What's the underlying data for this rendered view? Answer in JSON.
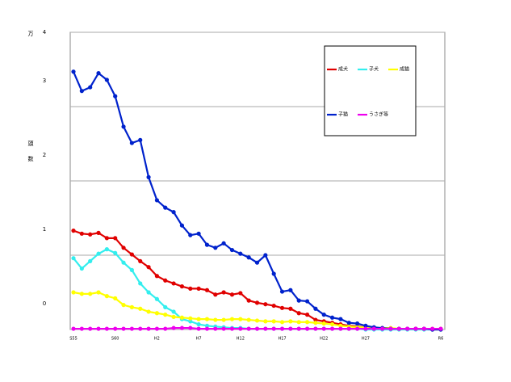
{
  "chart_data": {
    "type": "line",
    "y_unit": "万",
    "ylabel": "頭数",
    "categories": [
      "S55",
      null,
      null,
      null,
      null,
      "S60",
      null,
      null,
      null,
      null,
      "H2",
      null,
      null,
      null,
      null,
      "H7",
      null,
      null,
      null,
      null,
      "H12",
      null,
      null,
      null,
      null,
      "H17",
      null,
      null,
      null,
      null,
      "H22",
      null,
      null,
      null,
      null,
      "H27",
      null,
      null,
      null,
      null,
      null,
      null,
      null,
      null,
      "R6"
    ],
    "ylim": [
      0,
      4
    ],
    "yticks": [
      0,
      1,
      2,
      3,
      4
    ],
    "grid": true,
    "legend": "top-right",
    "series": [
      {
        "name": "成犬",
        "color": "#e00000",
        "values": [
          1.33,
          1.29,
          1.28,
          1.3,
          1.23,
          1.23,
          1.1,
          1.01,
          0.92,
          0.84,
          0.72,
          0.66,
          0.62,
          0.58,
          0.55,
          0.55,
          0.53,
          0.47,
          0.5,
          0.47,
          0.49,
          0.39,
          0.36,
          0.34,
          0.32,
          0.29,
          0.28,
          0.22,
          0.2,
          0.13,
          0.11,
          0.09,
          0.07,
          0.05,
          0.04,
          0.03,
          0.02,
          0.01,
          0.01,
          0.01,
          0.01,
          0.01,
          0.01,
          0,
          0
        ]
      },
      {
        "name": "子犬",
        "color": "#33eeee",
        "values": [
          0.96,
          0.82,
          0.92,
          1.02,
          1.08,
          1.03,
          0.9,
          0.8,
          0.62,
          0.5,
          0.41,
          0.3,
          0.24,
          0.14,
          0.11,
          0.07,
          0.05,
          0.04,
          0.03,
          0.02,
          0.02,
          0.01,
          0.01,
          0.01,
          0.01,
          0.01,
          0.01,
          0.01,
          0.01,
          0.01,
          0.01,
          0.01,
          0.01,
          0.01,
          0.01,
          0,
          0,
          0,
          0,
          0,
          0,
          0,
          0,
          0,
          0
        ]
      },
      {
        "name": "成猫",
        "color": "#ffff00",
        "values": [
          0.5,
          0.48,
          0.48,
          0.5,
          0.45,
          0.42,
          0.33,
          0.3,
          0.28,
          0.24,
          0.22,
          0.2,
          0.17,
          0.16,
          0.15,
          0.14,
          0.14,
          0.13,
          0.13,
          0.14,
          0.14,
          0.13,
          0.12,
          0.11,
          0.11,
          0.1,
          0.11,
          0.1,
          0.1,
          0.09,
          0.08,
          0.07,
          0.05,
          0.04,
          0.03,
          0.03,
          0.02,
          0.02,
          0.02,
          0.01,
          0.01,
          0.01,
          0.01,
          0.01,
          0.01
        ]
      },
      {
        "name": "子猫",
        "color": "#0022cc",
        "values": [
          3.47,
          3.21,
          3.26,
          3.45,
          3.36,
          3.14,
          2.73,
          2.51,
          2.55,
          2.05,
          1.74,
          1.64,
          1.58,
          1.4,
          1.27,
          1.29,
          1.14,
          1.1,
          1.16,
          1.07,
          1.02,
          0.97,
          0.9,
          1.0,
          0.75,
          0.51,
          0.53,
          0.39,
          0.38,
          0.28,
          0.2,
          0.16,
          0.14,
          0.09,
          0.08,
          0.05,
          0.03,
          0.02,
          0.01,
          0.01,
          0.01,
          0.01,
          0.01,
          0,
          0
        ]
      },
      {
        "name": "うさぎ等",
        "color": "#ee00ee",
        "values": [
          0.01,
          0.01,
          0.01,
          0.01,
          0.01,
          0.01,
          0.01,
          0.01,
          0.01,
          0.01,
          0.01,
          0.01,
          0.02,
          0.02,
          0.02,
          0.01,
          0.01,
          0.01,
          0.01,
          0.01,
          0.01,
          0.01,
          0.01,
          0.01,
          0.01,
          0.01,
          0.01,
          0.01,
          0.01,
          0.01,
          0.01,
          0.01,
          0.01,
          0.01,
          0.01,
          0.01,
          0.01,
          0.01,
          0.01,
          0.01,
          0.01,
          0.01,
          0.01,
          0.01,
          0.01
        ]
      }
    ]
  }
}
